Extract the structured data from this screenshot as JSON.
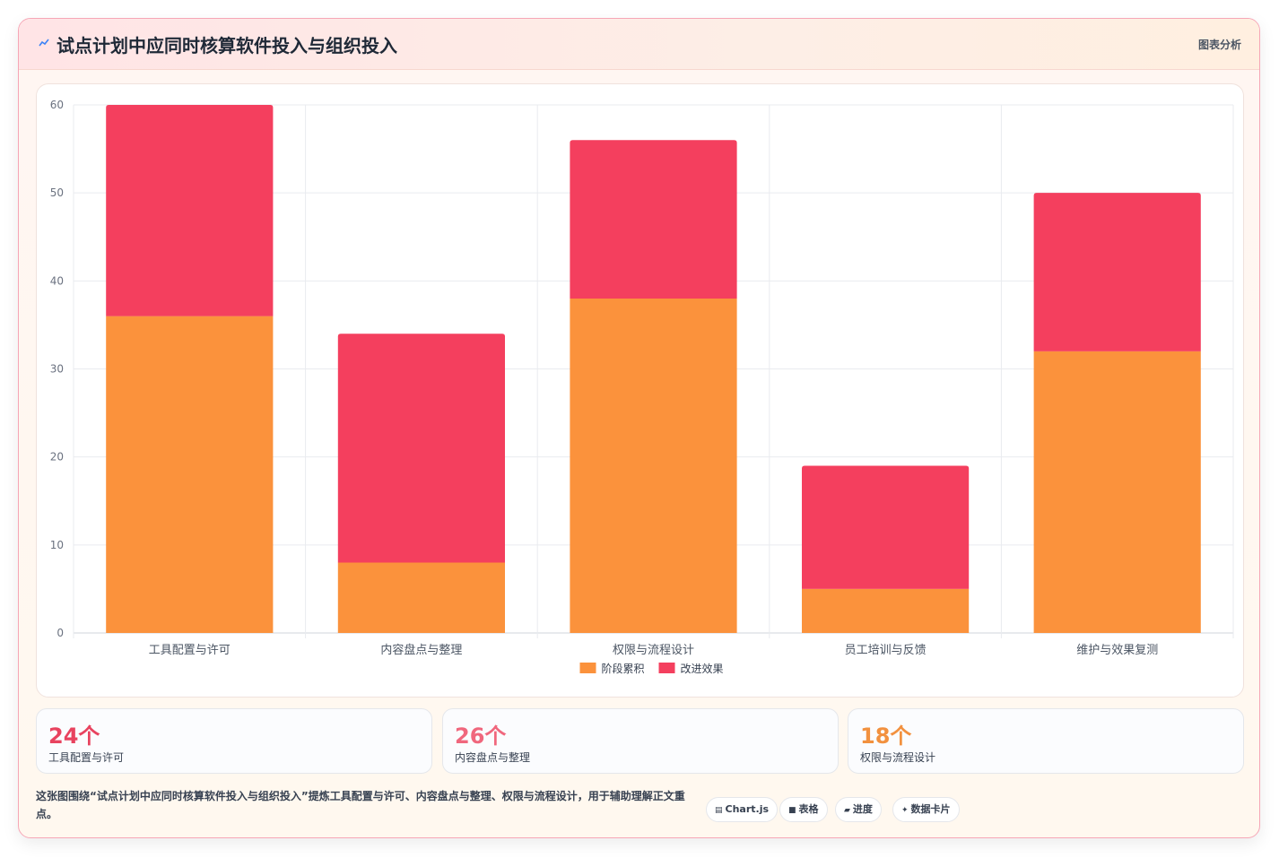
{
  "header": {
    "title": "试点计划中应同时核算软件投入与组织投入",
    "tag": "图表分析",
    "accent_color": "#3b82f6"
  },
  "chart_data": {
    "type": "bar",
    "stacked": true,
    "categories": [
      "工具配置与许可",
      "内容盘点与整理",
      "权限与流程设计",
      "员工培训与反馈",
      "维护与效果复测"
    ],
    "series": [
      {
        "name": "阶段累积",
        "color": "#fb923c",
        "values": [
          36,
          8,
          38,
          5,
          32
        ]
      },
      {
        "name": "改进效果",
        "color": "#f43f5e",
        "values": [
          24,
          26,
          18,
          14,
          18
        ]
      }
    ],
    "ylim": [
      0,
      60
    ],
    "yticks": [
      0,
      10,
      20,
      30,
      40,
      50,
      60
    ],
    "grid": true,
    "legend": "bottom"
  },
  "stats": [
    {
      "value": "24个",
      "label": "工具配置与许可",
      "color": "#e8435f"
    },
    {
      "value": "26个",
      "label": "内容盘点与整理",
      "color": "#f0677d"
    },
    {
      "value": "18个",
      "label": "权限与流程设计",
      "color": "#f2913f"
    }
  ],
  "footer": {
    "note": "这张图围绕“试点计划中应同时核算软件投入与组织投入”提炼工具配置与许可、内容盘点与整理、权限与流程设计，用于辅助理解正文重点。",
    "chips": [
      {
        "icon": "chart-icon",
        "glyph": "▤",
        "label": "Chart.js"
      },
      {
        "icon": "table-icon",
        "glyph": "■",
        "label": "表格"
      },
      {
        "icon": "progress-icon",
        "glyph": "▰",
        "label": "进度"
      },
      {
        "icon": "sparkle-icon",
        "glyph": "✦",
        "label": "数据卡片"
      }
    ]
  }
}
